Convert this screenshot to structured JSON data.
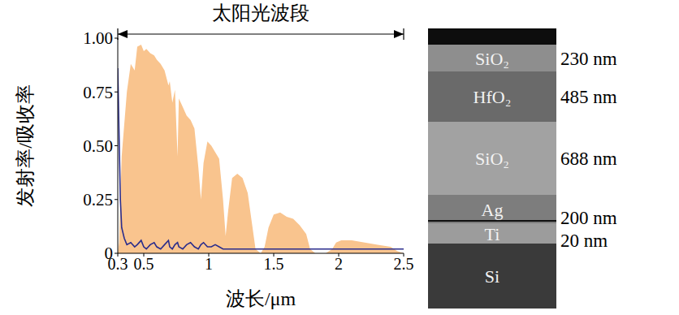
{
  "chart_data": {
    "type": "line",
    "annotation": "太阳光波段",
    "x_label": "波长/μm",
    "y_label": "发射率/吸收率",
    "x": [
      0.3,
      0.31,
      0.32,
      0.33,
      0.35,
      0.37,
      0.4,
      0.43,
      0.45,
      0.48,
      0.5,
      0.52,
      0.55,
      0.58,
      0.6,
      0.63,
      0.66,
      0.69,
      0.7,
      0.72,
      0.74,
      0.76,
      0.77,
      0.8,
      0.83,
      0.86,
      0.89,
      0.92,
      0.94,
      0.96,
      0.99,
      1.02,
      1.05,
      1.08,
      1.11,
      1.13,
      1.15,
      1.18,
      1.22,
      1.26,
      1.3,
      1.33,
      1.36,
      1.4,
      1.43,
      1.46,
      1.5,
      1.55,
      1.6,
      1.65,
      1.7,
      1.75,
      1.78,
      1.82,
      1.9,
      1.95,
      1.98,
      2.02,
      2.1,
      2.2,
      2.3,
      2.4,
      2.45,
      2.5
    ],
    "series": [
      {
        "type": "area",
        "color": "#f9c48e",
        "values": [
          0,
          0.05,
          0.25,
          0.45,
          0.6,
          0.75,
          0.88,
          0.85,
          0.96,
          0.97,
          0.94,
          0.95,
          0.93,
          0.92,
          0.9,
          0.88,
          0.85,
          0.78,
          0.8,
          0.7,
          0.76,
          0.45,
          0.72,
          0.68,
          0.64,
          0.62,
          0.58,
          0.4,
          0.25,
          0.42,
          0.52,
          0.5,
          0.47,
          0.44,
          0.25,
          0.08,
          0.2,
          0.35,
          0.37,
          0.35,
          0.28,
          0.15,
          0.02,
          0,
          0.03,
          0.12,
          0.18,
          0.19,
          0.17,
          0.16,
          0.13,
          0.09,
          0.02,
          0,
          0,
          0.02,
          0.05,
          0.06,
          0.06,
          0.05,
          0.04,
          0.03,
          0.01,
          0
        ]
      },
      {
        "type": "line",
        "color": "#2b2d8c",
        "values": [
          0.86,
          0.55,
          0.25,
          0.12,
          0.07,
          0.04,
          0.05,
          0.03,
          0.04,
          0.06,
          0.03,
          0.02,
          0.04,
          0.05,
          0.03,
          0.02,
          0.04,
          0.06,
          0.03,
          0.02,
          0.04,
          0.05,
          0.03,
          0.02,
          0.04,
          0.05,
          0.03,
          0.02,
          0.04,
          0.05,
          0.03,
          0.03,
          0.04,
          0.03,
          0.02,
          0.02,
          0.02,
          0.02,
          0.02,
          0.02,
          0.02,
          0.02,
          0.02,
          0.02,
          0.02,
          0.02,
          0.02,
          0.02,
          0.02,
          0.02,
          0.02,
          0.02,
          0.02,
          0.02,
          0.02,
          0.02,
          0.02,
          0.02,
          0.02,
          0.02,
          0.02,
          0.02,
          0.02,
          0.02
        ]
      }
    ],
    "xlim": [
      0.3,
      2.5
    ],
    "xticks": [
      0.3,
      0.5,
      1,
      1.5,
      2,
      2.5
    ],
    "ylim": [
      0,
      1
    ],
    "yticks": [
      0,
      0.25,
      {
        "value": 0.5,
        "label": "0.50"
      },
      0.75,
      {
        "value": 1,
        "label": "1.00"
      }
    ],
    "grid": false
  },
  "cross_section": {
    "layers": [
      {
        "material": "SiO₂",
        "thickness": "230 nm"
      },
      {
        "material": "HfO₂",
        "thickness": "485 nm"
      },
      {
        "material": "SiO₂",
        "thickness": "688 nm"
      },
      {
        "material": "Ag",
        "thickness": "200 nm"
      },
      {
        "material": "Ti",
        "thickness": "20 nm"
      },
      {
        "material": "Si"
      }
    ]
  }
}
